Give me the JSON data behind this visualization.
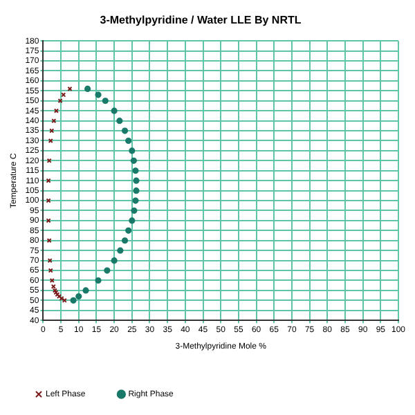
{
  "chart_data": {
    "type": "scatter",
    "title": "3-Methylpyridine / Water LLE By NRTL",
    "xlabel": "3-Methylpyridine Mole %",
    "ylabel": "Temperature C",
    "xlim": [
      0,
      100
    ],
    "xticks": [
      0,
      5,
      10,
      15,
      20,
      25,
      30,
      35,
      40,
      45,
      50,
      55,
      60,
      65,
      70,
      75,
      80,
      85,
      90,
      95,
      100
    ],
    "ylim": [
      40,
      180
    ],
    "yticks": [
      40,
      45,
      50,
      55,
      60,
      65,
      70,
      75,
      80,
      85,
      90,
      95,
      100,
      105,
      110,
      115,
      120,
      125,
      130,
      135,
      140,
      145,
      150,
      155,
      160,
      165,
      170,
      175,
      180
    ],
    "grid": true,
    "legend": "bottom",
    "series": [
      {
        "name": "Left Phase",
        "color": "#7a1a1a",
        "marker": "cross",
        "x": [
          6,
          5.2,
          4.5,
          4,
          3.6,
          3.3,
          2.9,
          2.5,
          2.1,
          1.9,
          1.7,
          1.5,
          1.5,
          1.5,
          1.7,
          2.1,
          2.4,
          3,
          3.7,
          4.8,
          5.7,
          7.5
        ],
        "values": [
          50,
          51,
          52,
          53,
          54,
          55,
          57,
          60,
          65,
          70,
          80,
          90,
          100,
          110,
          120,
          130,
          135,
          140,
          145,
          150,
          153,
          156
        ]
      },
      {
        "name": "Right Phase",
        "color": "#1a7a6a",
        "marker": "circle",
        "x": [
          8.5,
          10,
          12,
          15.5,
          18,
          20,
          21.7,
          23,
          24,
          25,
          25.6,
          26,
          26.2,
          26.2,
          26,
          25.5,
          25,
          24,
          23,
          21.5,
          20,
          17.5,
          15.5,
          12.5
        ],
        "values": [
          50,
          52,
          55,
          60,
          65,
          70,
          75,
          80,
          85,
          90,
          95,
          100,
          105,
          110,
          115,
          120,
          125,
          130,
          135,
          140,
          145,
          150,
          153,
          156
        ]
      }
    ]
  }
}
